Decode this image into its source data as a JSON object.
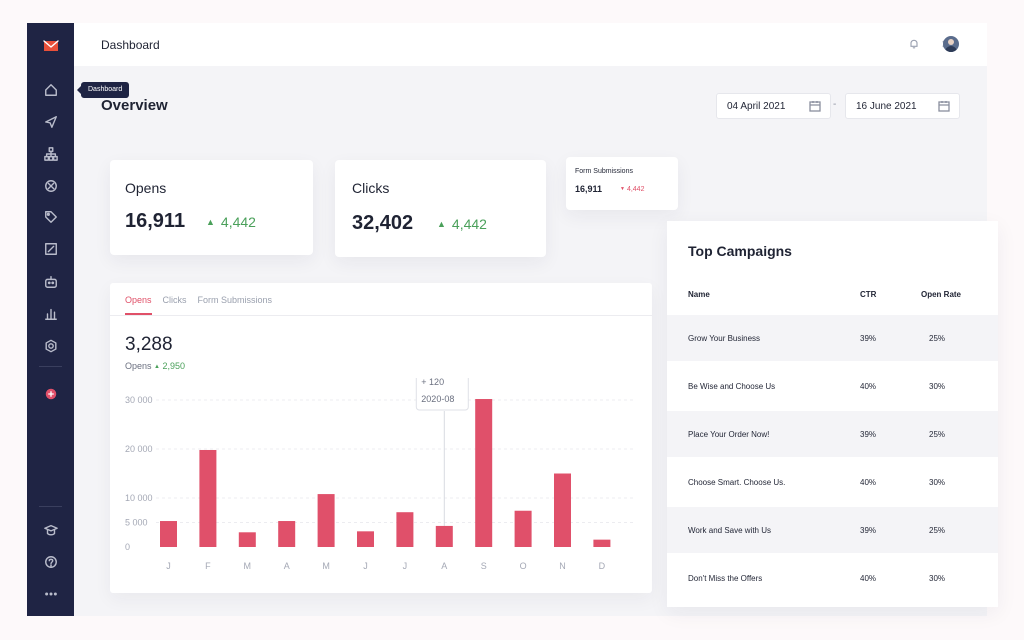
{
  "sidebar": {
    "tooltip": "Dashboard",
    "icons": [
      "mail-icon",
      "home-icon",
      "send-icon",
      "sitemap-icon",
      "target-icon",
      "tag-icon",
      "edit-icon",
      "robot-icon",
      "bar-chart-icon",
      "settings-icon",
      "add-icon",
      "graduation-icon",
      "help-icon",
      "more-icon"
    ]
  },
  "topbar": {
    "title": "Dashboard"
  },
  "overview": {
    "title": "Overview",
    "date_from": "04 April 2021",
    "date_separator": "-",
    "date_to": "16 June 2021"
  },
  "stats": {
    "opens": {
      "label": "Opens",
      "value": "16,911",
      "delta": "4,442"
    },
    "clicks": {
      "label": "Clicks",
      "value": "32,402",
      "delta": "4,442"
    },
    "form": {
      "label": "Form Submissions",
      "value": "16,911",
      "delta": "4,442"
    }
  },
  "chart_panel": {
    "tabs": [
      "Opens",
      "Clicks",
      "Form Submissions"
    ],
    "total": "3,288",
    "total_label": "Opens",
    "total_delta": "2,950",
    "tooltip": {
      "delta": "+ 120",
      "period": "2020-08"
    }
  },
  "chart_data": {
    "type": "bar",
    "categories": [
      "J",
      "F",
      "M",
      "A",
      "M",
      "J",
      "J",
      "A",
      "S",
      "O",
      "N",
      "D"
    ],
    "values": [
      5300,
      19800,
      3000,
      5300,
      10800,
      3200,
      7100,
      4300,
      30200,
      7400,
      15000,
      1500
    ],
    "yticks": [
      "30 000",
      "20 000",
      "10 000",
      "5 000",
      "0"
    ],
    "ytick_values": [
      30000,
      20000,
      10000,
      5000,
      0
    ],
    "highlight_index": 7,
    "color": "#e0506a"
  },
  "campaigns": {
    "title": "Top Campaigns",
    "headers": {
      "name": "Name",
      "ctr": "CTR",
      "open_rate": "Open Rate"
    },
    "rows": [
      {
        "name": "Grow Your Business",
        "ctr": "39%",
        "open_rate": "25%"
      },
      {
        "name": "Be Wise and Choose Us",
        "ctr": "40%",
        "open_rate": "30%"
      },
      {
        "name": "Place Your Order Now!",
        "ctr": "39%",
        "open_rate": "25%"
      },
      {
        "name": "Choose Smart. Choose Us.",
        "ctr": "40%",
        "open_rate": "30%"
      },
      {
        "name": "Work and Save with Us",
        "ctr": "39%",
        "open_rate": "25%"
      },
      {
        "name": "Don't Miss the Offers",
        "ctr": "40%",
        "open_rate": "30%"
      }
    ]
  }
}
